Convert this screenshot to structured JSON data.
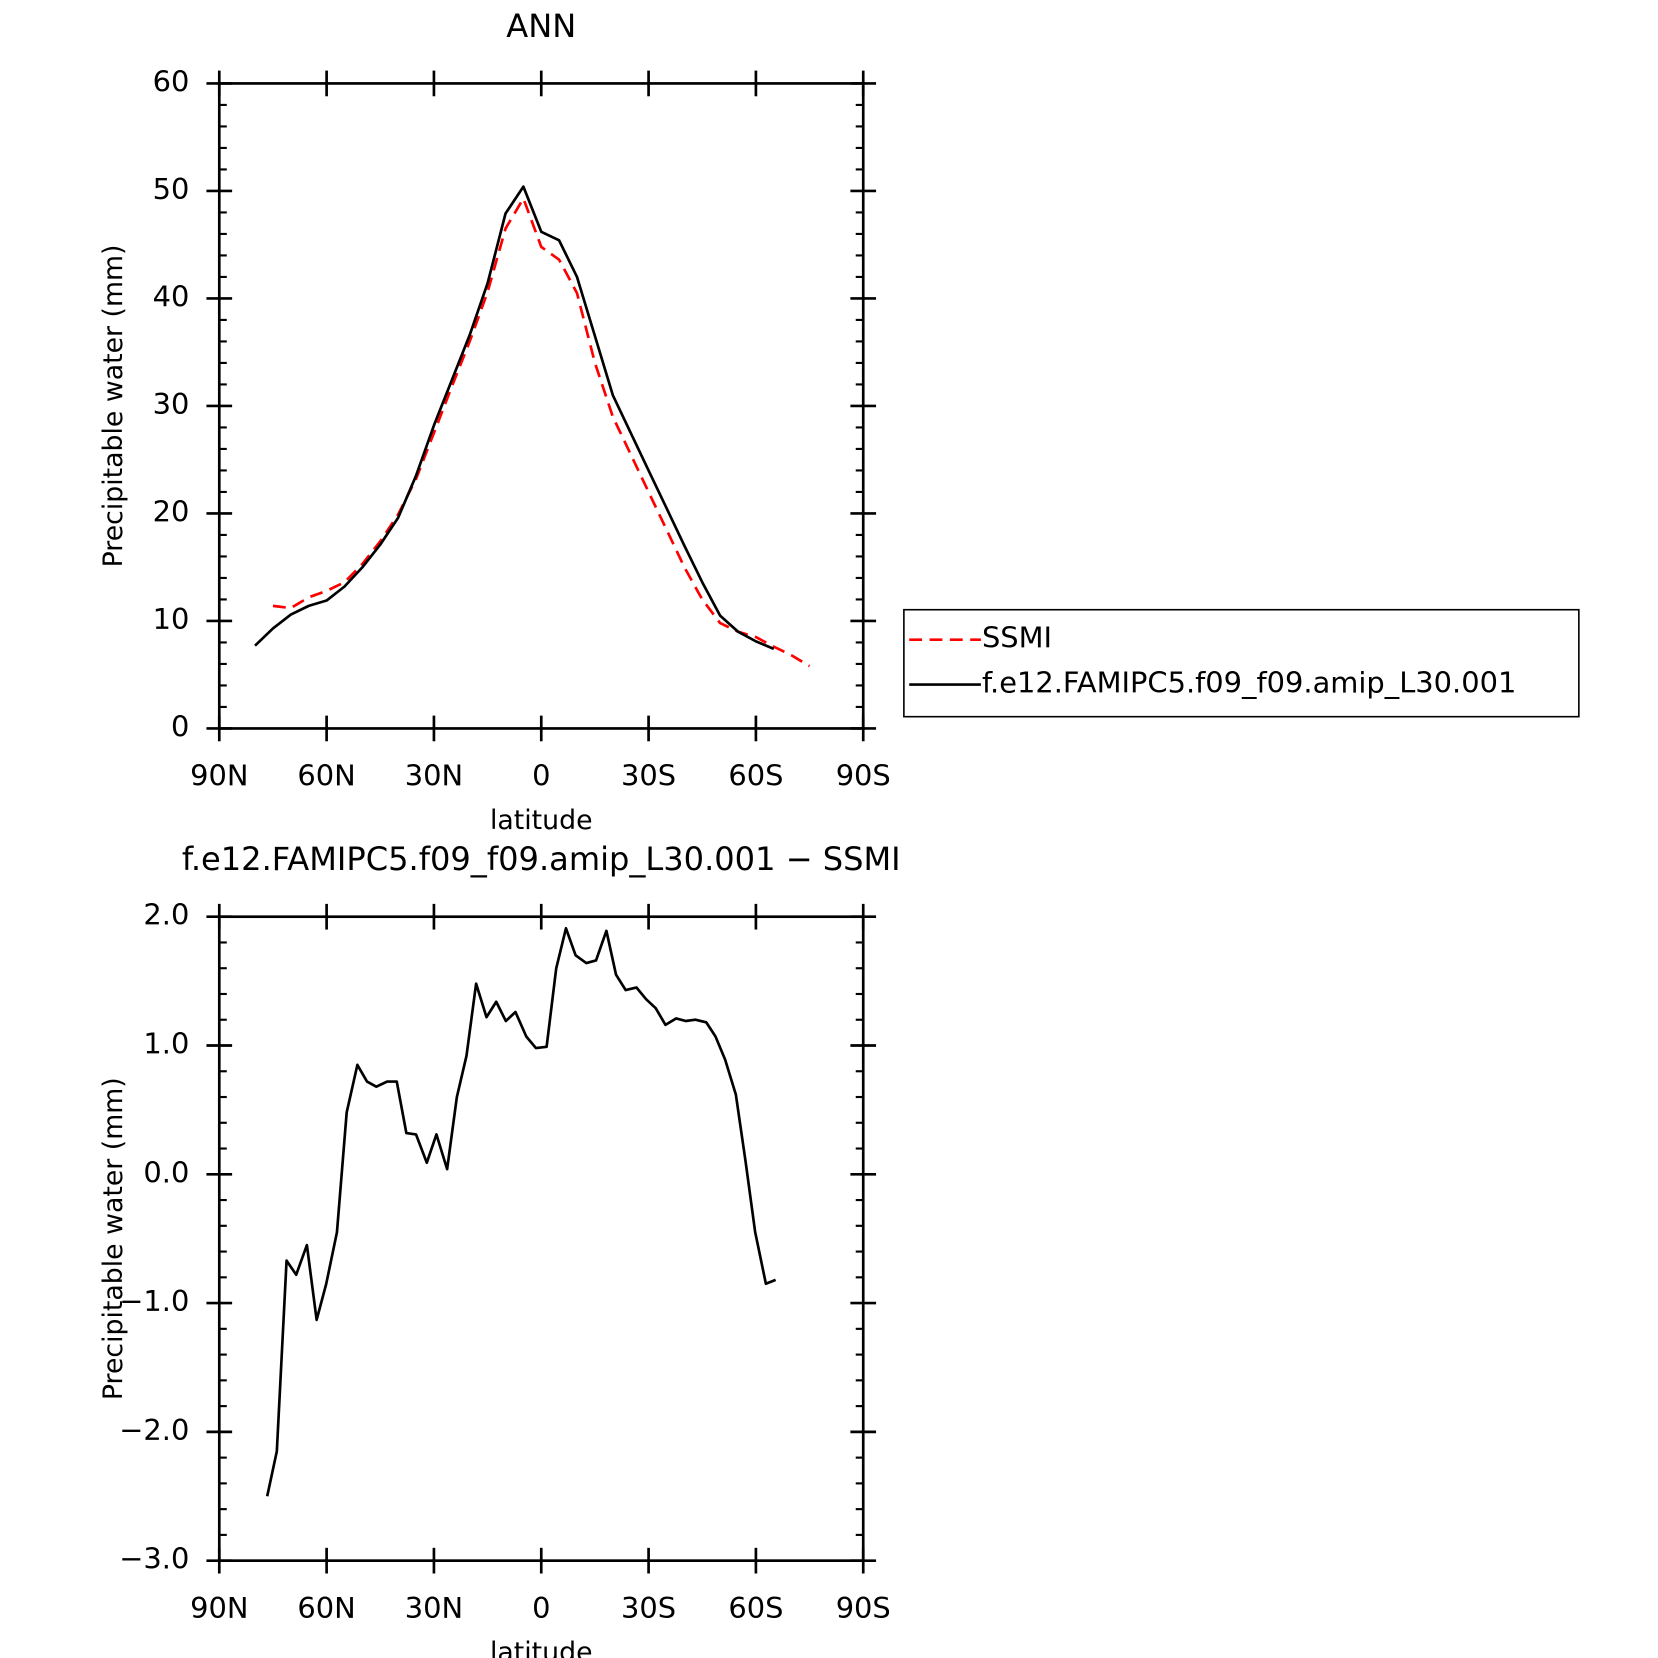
{
  "chart_data": [
    {
      "type": "line",
      "title": "ANN",
      "xlabel": "latitude",
      "ylabel": "Precipitable water (mm)",
      "x": [
        80,
        75,
        70,
        65,
        60,
        55,
        50,
        45,
        40,
        35,
        30,
        25,
        20,
        15,
        10,
        5,
        0,
        -5,
        -10,
        -15,
        -20,
        -25,
        -30,
        -35,
        -40,
        -45,
        -50,
        -55,
        -60,
        -65,
        -70,
        -75
      ],
      "series": [
        {
          "name": "SSMI",
          "color": "#ff0000",
          "dash": true,
          "values": [
            null,
            11.4,
            11.2,
            12.2,
            12.8,
            13.6,
            15.3,
            17.4,
            19.9,
            23.2,
            27.5,
            31.8,
            36.0,
            40.6,
            46.5,
            49.3,
            44.8,
            43.6,
            40.5,
            34.0,
            29.0,
            25.5,
            22.0,
            18.5,
            15.0,
            12.0,
            9.8,
            9.0,
            8.5,
            7.6,
            6.8,
            5.8
          ]
        },
        {
          "name": "f.e12.FAMIPC5.f09_f09.amip_L30.001",
          "color": "#000000",
          "dash": false,
          "values": [
            7.7,
            9.3,
            10.6,
            11.4,
            11.9,
            13.2,
            15.0,
            17.1,
            19.6,
            23.5,
            28.2,
            32.4,
            36.6,
            41.4,
            47.9,
            50.4,
            46.2,
            45.4,
            42.0,
            36.5,
            31.0,
            27.5,
            24.0,
            20.5,
            17.0,
            13.6,
            10.5,
            9.0,
            8.1,
            7.4,
            null,
            null
          ]
        }
      ],
      "xlim": [
        90,
        -90
      ],
      "xticks": [
        {
          "value": 90,
          "label": "90N"
        },
        {
          "value": 60,
          "label": "60N"
        },
        {
          "value": 30,
          "label": "30N"
        },
        0,
        {
          "value": -30,
          "label": "30S"
        },
        {
          "value": -60,
          "label": "60S"
        },
        {
          "value": -90,
          "label": "90S"
        }
      ],
      "ylim": [
        0,
        60
      ],
      "yticks": [
        0,
        10,
        20,
        30,
        40,
        50,
        60
      ],
      "legend": "right"
    },
    {
      "type": "line",
      "title": "f.e12.FAMIPC5.f09_f09.amip_L30.001 − SSMI",
      "xlabel": "latitude",
      "ylabel": "Precipitable water (mm)",
      "x": [
        76.6,
        73.9,
        71.2,
        68.5,
        65.5,
        62.8,
        60.1,
        57.1,
        54.4,
        51.4,
        48.7,
        46.1,
        43.1,
        40.4,
        37.7,
        35.0,
        32.0,
        29.3,
        26.3,
        23.6,
        20.9,
        18.2,
        15.3,
        12.6,
        9.9,
        7.2,
        4.2,
        1.5,
        -1.5,
        -4.2,
        -6.9,
        -9.6,
        -12.6,
        -15.3,
        -18.2,
        -20.9,
        -23.6,
        -26.6,
        -29.3,
        -32.0,
        -34.7,
        -37.7,
        -40.4,
        -43.1,
        -46.1,
        -48.7,
        -51.4,
        -54.4,
        -57.1,
        -59.8,
        -62.8,
        -65.5
      ],
      "values": [
        -2.5,
        -2.15,
        -0.67,
        -0.78,
        -0.55,
        -1.13,
        -0.85,
        -0.45,
        0.48,
        0.85,
        0.72,
        0.68,
        0.72,
        0.72,
        0.32,
        0.31,
        0.09,
        0.31,
        0.04,
        0.6,
        0.92,
        1.48,
        1.22,
        1.34,
        1.19,
        1.26,
        1.07,
        0.98,
        0.99,
        1.6,
        1.91,
        1.7,
        1.64,
        1.66,
        1.89,
        1.55,
        1.43,
        1.45,
        1.36,
        1.29,
        1.16,
        1.21,
        1.19,
        1.2,
        1.18,
        1.07,
        0.89,
        0.62,
        0.1,
        -0.45,
        -0.85,
        -0.82
      ],
      "color": "#000000",
      "xlim": [
        90,
        -90
      ],
      "xticks": [
        {
          "value": 90,
          "label": "90N"
        },
        {
          "value": 60,
          "label": "60N"
        },
        {
          "value": 30,
          "label": "30N"
        },
        0,
        {
          "value": -30,
          "label": "30S"
        },
        {
          "value": -60,
          "label": "60S"
        },
        {
          "value": -90,
          "label": "90S"
        }
      ],
      "ylim": [
        -3,
        2
      ],
      "yticks": [
        {
          "value": -3,
          "label": "−3.0"
        },
        {
          "value": -2,
          "label": "−2.0"
        },
        {
          "value": -1,
          "label": "−1.0"
        },
        {
          "value": 0,
          "label": "0.0"
        },
        {
          "value": 1,
          "label": "1.0"
        },
        {
          "value": 2,
          "label": "2.0"
        }
      ]
    }
  ]
}
